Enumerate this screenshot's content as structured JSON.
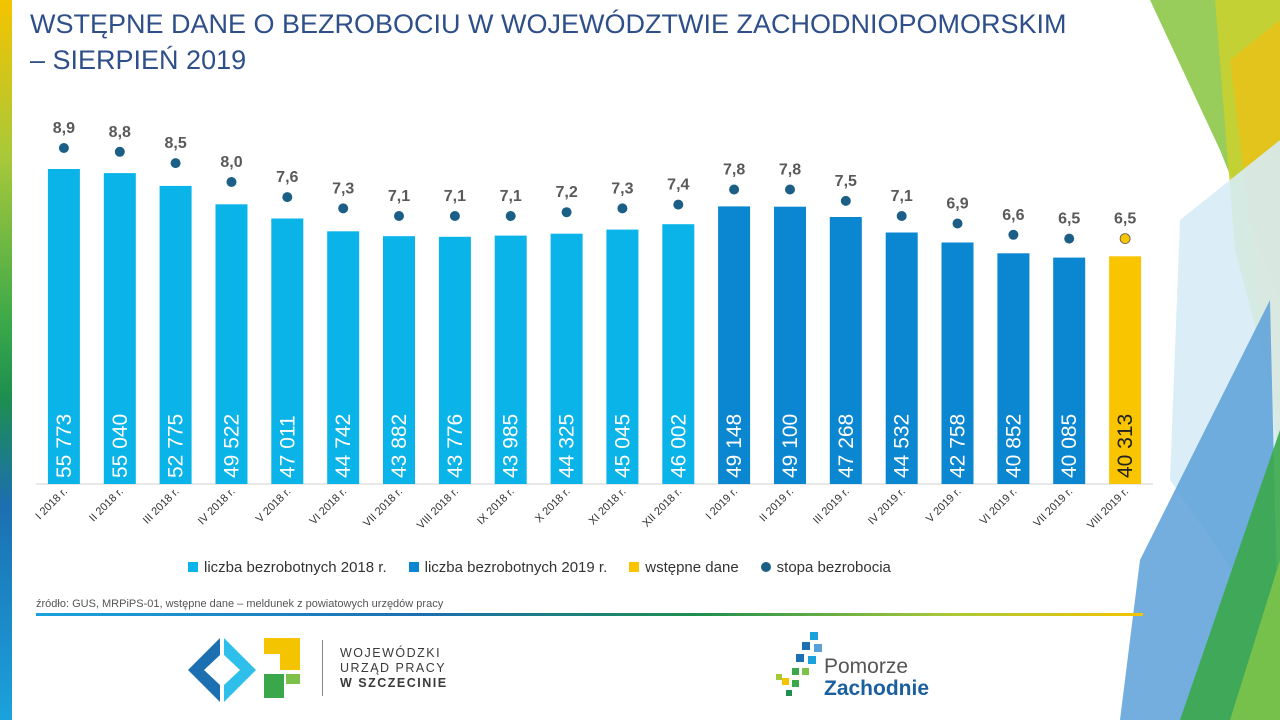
{
  "title": {
    "line1": "WSTĘPNE DANE O BEZROBOCIU W WOJEWÓDZTWIE ZACHODNIOPOMORSKIM",
    "line2": "– SIERPIEŃ 2019"
  },
  "colors": {
    "bars_2018": "#0bb4e8",
    "bars_2019": "#0b86d0",
    "preliminary": "#f9c400",
    "rate_marker": "#1c5f86"
  },
  "chart_data": {
    "type": "bar",
    "categories": [
      "I 2018 r.",
      "II 2018 r.",
      "III 2018 r.",
      "IV 2018 r.",
      "V 2018 r.",
      "VI 2018 r.",
      "VII 2018 r.",
      "VIII 2018 r.",
      "IX 2018 r.",
      "X 2018 r.",
      "XI 2018 r.",
      "XII 2018 r.",
      "I 2019 r.",
      "II 2019 r.",
      "III 2019 r.",
      "IV 2019 r.",
      "V 2019 r.",
      "VI 2019 r.",
      "VII 2019 r.",
      "VIII 2019 r."
    ],
    "series": [
      {
        "name": "liczba bezrobotnych 2018 r.",
        "values": [
          55773,
          55040,
          52775,
          49522,
          47011,
          44742,
          43882,
          43776,
          43985,
          44325,
          45045,
          46002,
          null,
          null,
          null,
          null,
          null,
          null,
          null,
          null
        ]
      },
      {
        "name": "liczba bezrobotnych 2019 r.",
        "values": [
          null,
          null,
          null,
          null,
          null,
          null,
          null,
          null,
          null,
          null,
          null,
          null,
          49148,
          49100,
          47268,
          44532,
          42758,
          40852,
          40085,
          null
        ]
      },
      {
        "name": "wstępne dane",
        "values": [
          null,
          null,
          null,
          null,
          null,
          null,
          null,
          null,
          null,
          null,
          null,
          null,
          null,
          null,
          null,
          null,
          null,
          null,
          null,
          40313
        ]
      },
      {
        "name": "stopa bezrobocia",
        "type": "scatter",
        "values": [
          8.9,
          8.8,
          8.5,
          8.0,
          7.6,
          7.3,
          7.1,
          7.1,
          7.1,
          7.2,
          7.3,
          7.4,
          7.8,
          7.8,
          7.5,
          7.1,
          6.9,
          6.6,
          6.5,
          6.5
        ]
      }
    ],
    "bar_labels": [
      "55 773",
      "55 040",
      "52 775",
      "49 522",
      "47 011",
      "44 742",
      "43 882",
      "43 776",
      "43 985",
      "44 325",
      "45 045",
      "46 002",
      "49 148",
      "49 100",
      "47 268",
      "44 532",
      "42 758",
      "40 852",
      "40 085",
      "40 313"
    ],
    "rate_labels": [
      "8,9",
      "8,8",
      "8,5",
      "8,0",
      "7,6",
      "7,3",
      "7,1",
      "7,1",
      "7,1",
      "7,2",
      "7,3",
      "7,4",
      "7,8",
      "7,8",
      "7,5",
      "7,1",
      "6,9",
      "6,6",
      "6,5",
      "6,5"
    ],
    "legend": [
      "liczba bezrobotnych 2018 r.",
      "liczba bezrobotnych 2019 r.",
      "wstępne dane",
      "stopa bezrobocia"
    ],
    "legend_position": "bottom",
    "grid": false
  },
  "source": "źródło: GUS, MRPiPS-01, wstępne dane – meldunek z powiatowych urzędów pracy",
  "logos": {
    "wup": [
      "WOJEWÓDZKI",
      "URZĄD PRACY",
      "W SZCZECINIE"
    ],
    "pz": [
      "Pomorze",
      "Zachodnie"
    ]
  }
}
